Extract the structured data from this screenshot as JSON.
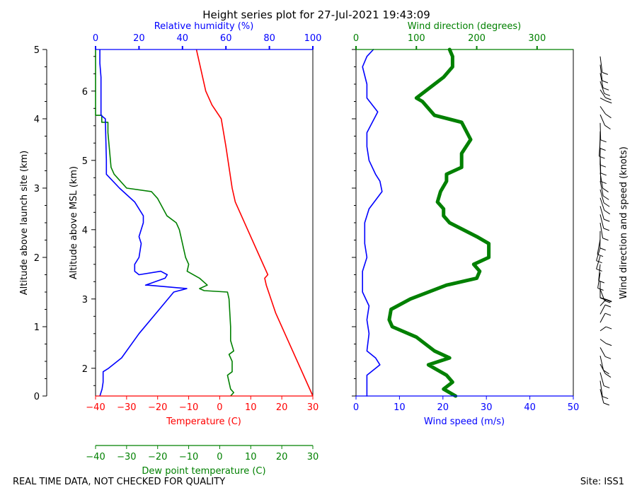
{
  "title": "Height series plot for 27-Jul-2021 19:43:09",
  "footer": {
    "quality_note": "REAL TIME DATA, NOT CHECKED FOR QUALITY",
    "site": "Site: ISS1"
  },
  "colors": {
    "temperature": "#ff0000",
    "dewpoint": "#008000",
    "humidity": "#0000ff",
    "wind_speed": "#0000ff",
    "wind_direction": "#008000",
    "barbs": "#000000"
  },
  "chart_data": [
    {
      "type": "line",
      "name": "thermo",
      "ylabel_left": "Altitude above launch site (km)",
      "ylabel_right": "Altitude above MSL (km)",
      "agl_ticks": [
        0,
        1,
        2,
        3,
        4,
        5
      ],
      "msl_ticks": [
        2,
        3,
        4,
        5,
        6
      ],
      "ylim_agl": [
        0,
        5
      ],
      "msl_offset": 1.6,
      "xaxis_temperature": {
        "label": "Temperature (C)",
        "range": [
          -40,
          30
        ],
        "ticks": [
          -40,
          -30,
          -20,
          -10,
          0,
          10,
          20,
          30
        ]
      },
      "xaxis_humidity": {
        "label": "Relative humidity (%)",
        "range": [
          0,
          100
        ],
        "ticks": [
          0,
          20,
          40,
          60,
          80,
          100
        ]
      },
      "xaxis_dewpoint": {
        "label": "Dew point temperature (C)",
        "range": [
          -40,
          30
        ],
        "ticks": [
          -40,
          -30,
          -20,
          -10,
          0,
          10,
          20,
          30
        ]
      },
      "series": [
        {
          "key": "temperature",
          "points": [
            [
              30,
              0
            ],
            [
              26,
              0.4
            ],
            [
              22,
              0.8
            ],
            [
              18,
              1.2
            ],
            [
              15,
              1.6
            ],
            [
              14.5,
              1.7
            ],
            [
              15.5,
              1.75
            ],
            [
              13,
              2.0
            ],
            [
              9,
              2.4
            ],
            [
              5,
              2.8
            ],
            [
              4,
              3.0
            ],
            [
              3,
              3.3
            ],
            [
              2,
              3.6
            ],
            [
              0.5,
              4.0
            ],
            [
              -2.5,
              4.2
            ],
            [
              -4.5,
              4.4
            ],
            [
              -5.5,
              4.6
            ],
            [
              -6.5,
              4.8
            ],
            [
              -7.5,
              5.0
            ]
          ]
        },
        {
          "key": "dewpoint",
          "points": [
            [
              3.5,
              0
            ],
            [
              4.5,
              0.05
            ],
            [
              3.5,
              0.1
            ],
            [
              3,
              0.2
            ],
            [
              2.5,
              0.3
            ],
            [
              4,
              0.35
            ],
            [
              4,
              0.5
            ],
            [
              3,
              0.6
            ],
            [
              4.5,
              0.65
            ],
            [
              3.5,
              0.8
            ],
            [
              3.5,
              1.0
            ],
            [
              3,
              1.4
            ],
            [
              2.5,
              1.5
            ],
            [
              -5,
              1.52
            ],
            [
              -6.5,
              1.55
            ],
            [
              -4,
              1.6
            ],
            [
              -6.5,
              1.7
            ],
            [
              -10.5,
              1.8
            ],
            [
              -10,
              1.9
            ],
            [
              -11,
              2.0
            ],
            [
              -12.5,
              2.3
            ],
            [
              -13,
              2.4
            ],
            [
              -14,
              2.5
            ],
            [
              -17,
              2.6
            ],
            [
              -20,
              2.85
            ],
            [
              -22,
              2.95
            ],
            [
              -30,
              3.0
            ],
            [
              -34,
              3.2
            ],
            [
              -35,
              3.3
            ],
            [
              -36,
              3.8
            ],
            [
              -36,
              3.95
            ],
            [
              -38,
              3.95
            ],
            [
              -38,
              4.05
            ],
            [
              -40,
              4.05
            ],
            [
              -40,
              5.0
            ]
          ]
        },
        {
          "key": "humidity",
          "points": [
            [
              2,
              0
            ],
            [
              3,
              0.1
            ],
            [
              3.5,
              0.2
            ],
            [
              3.5,
              0.35
            ],
            [
              6,
              0.4
            ],
            [
              12,
              0.55
            ],
            [
              20,
              0.9
            ],
            [
              28,
              1.2
            ],
            [
              36,
              1.5
            ],
            [
              42,
              1.55
            ],
            [
              24,
              1.6
            ],
            [
              23,
              1.6
            ],
            [
              32,
              1.7
            ],
            [
              33,
              1.75
            ],
            [
              30,
              1.8
            ],
            [
              20,
              1.75
            ],
            [
              18,
              1.8
            ],
            [
              18,
              1.9
            ],
            [
              20,
              2.0
            ],
            [
              21,
              2.2
            ],
            [
              20,
              2.3
            ],
            [
              22,
              2.5
            ],
            [
              22,
              2.6
            ],
            [
              18,
              2.8
            ],
            [
              11,
              3.0
            ],
            [
              5,
              3.2
            ],
            [
              5,
              3.4
            ],
            [
              4.5,
              4.0
            ],
            [
              2.5,
              4.05
            ],
            [
              2.5,
              4.2
            ],
            [
              2.5,
              4.4
            ],
            [
              2.5,
              4.6
            ],
            [
              2,
              4.8
            ],
            [
              2,
              4.9
            ],
            [
              2,
              5.0
            ]
          ]
        }
      ]
    },
    {
      "type": "line",
      "name": "wind",
      "ylim_agl": [
        0,
        5
      ],
      "xaxis_speed": {
        "label": "Wind speed (m/s)",
        "range": [
          0,
          50
        ],
        "ticks": [
          0,
          10,
          20,
          30,
          40,
          50
        ]
      },
      "xaxis_direction": {
        "label": "Wind direction (degrees)",
        "range": [
          0,
          360
        ],
        "ticks": [
          0,
          100,
          200,
          300
        ]
      },
      "barb_label": "Wind direction and speed (knots)",
      "series": [
        {
          "key": "wind_speed",
          "points": [
            [
              2.5,
              0
            ],
            [
              2.5,
              0.3
            ],
            [
              5.5,
              0.45
            ],
            [
              4.5,
              0.55
            ],
            [
              2.5,
              0.65
            ],
            [
              3,
              0.9
            ],
            [
              2.5,
              1.1
            ],
            [
              3,
              1.3
            ],
            [
              1.5,
              1.5
            ],
            [
              1.5,
              1.8
            ],
            [
              2.5,
              2.0
            ],
            [
              2,
              2.2
            ],
            [
              2,
              2.5
            ],
            [
              3,
              2.7
            ],
            [
              6,
              2.95
            ],
            [
              5.5,
              3.1
            ],
            [
              4.5,
              3.2
            ],
            [
              3,
              3.4
            ],
            [
              2.5,
              3.6
            ],
            [
              2.5,
              3.8
            ],
            [
              5,
              4.1
            ],
            [
              2.5,
              4.3
            ],
            [
              2.5,
              4.5
            ],
            [
              1.5,
              4.75
            ],
            [
              2.5,
              4.9
            ],
            [
              4,
              5.0
            ]
          ]
        },
        {
          "key": "wind_direction",
          "points": [
            [
              165,
              0
            ],
            [
              145,
              0.1
            ],
            [
              160,
              0.2
            ],
            [
              150,
              0.3
            ],
            [
              120,
              0.45
            ],
            [
              155,
              0.55
            ],
            [
              130,
              0.65
            ],
            [
              100,
              0.85
            ],
            [
              60,
              1.0
            ],
            [
              55,
              1.1
            ],
            [
              58,
              1.25
            ],
            [
              90,
              1.4
            ],
            [
              150,
              1.6
            ],
            [
              200,
              1.7
            ],
            [
              205,
              1.8
            ],
            [
              195,
              1.9
            ],
            [
              220,
              2.0
            ],
            [
              220,
              2.2
            ],
            [
              200,
              2.3
            ],
            [
              155,
              2.5
            ],
            [
              145,
              2.6
            ],
            [
              145,
              2.7
            ],
            [
              135,
              2.8
            ],
            [
              140,
              2.95
            ],
            [
              150,
              3.1
            ],
            [
              150,
              3.2
            ],
            [
              175,
              3.3
            ],
            [
              175,
              3.5
            ],
            [
              190,
              3.7
            ],
            [
              175,
              3.95
            ],
            [
              130,
              4.05
            ],
            [
              110,
              4.25
            ],
            [
              100,
              4.3
            ],
            [
              130,
              4.5
            ],
            [
              145,
              4.6
            ],
            [
              160,
              4.75
            ],
            [
              160,
              4.9
            ],
            [
              155,
              5.0
            ]
          ]
        }
      ]
    }
  ]
}
